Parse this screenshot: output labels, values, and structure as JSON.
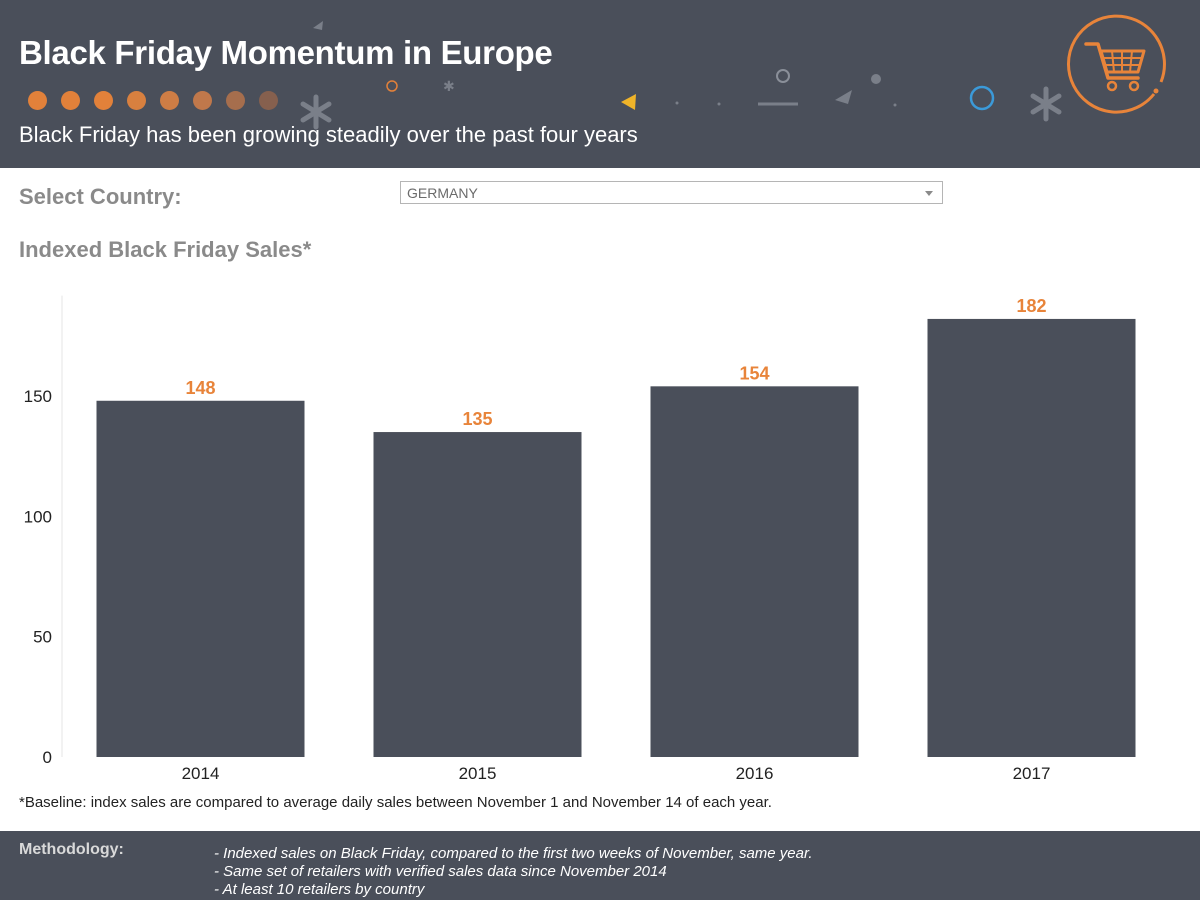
{
  "header": {
    "title": "Black Friday Momentum in Europe",
    "subtitle": "Black Friday has been growing steadily over the past four years",
    "dot_colors": [
      "#e2813a",
      "#e2813a",
      "#e2813a",
      "#d8803f",
      "#ce7d45",
      "#c0784b",
      "#a66e4d",
      "#86604e"
    ],
    "cart_icon": "shopping-cart-icon",
    "accent": "#e8843a"
  },
  "filter": {
    "label": "Select Country:",
    "selected": "GERMANY"
  },
  "chart_heading": "Indexed Black Friday Sales*",
  "chart_data": {
    "type": "bar",
    "categories": [
      "2014",
      "2015",
      "2016",
      "2017"
    ],
    "values": [
      148,
      135,
      154,
      182
    ],
    "data_labels": [
      "148",
      "135",
      "154",
      "182"
    ],
    "yticks": [
      "0",
      "50",
      "100",
      "150"
    ],
    "ytick_values": [
      0,
      50,
      100,
      150
    ],
    "ylim": [
      0,
      200
    ],
    "bar_color": "#4a4f5a",
    "label_color": "#e8843a",
    "grid": false,
    "legend": "none"
  },
  "footnote": "*Baseline: index sales are compared to average daily sales between November 1 and November 14 of each year.",
  "methodology": {
    "title": "Methodology:",
    "items": [
      "- Indexed sales on Black Friday, compared to the first two weeks of November, same year.",
      "- Same set of retailers with verified sales data since November 2014",
      "- At least 10 retailers by country"
    ]
  }
}
